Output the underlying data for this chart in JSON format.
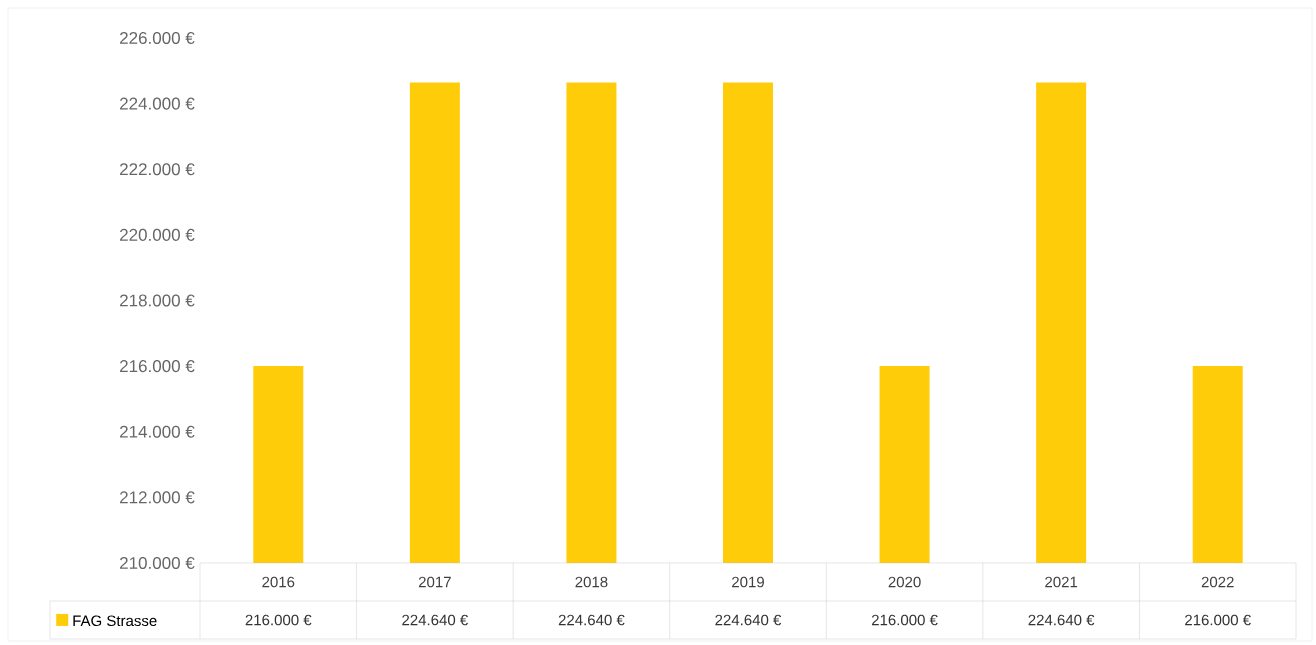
{
  "chart_data": {
    "type": "bar",
    "categories": [
      "2016",
      "2017",
      "2018",
      "2019",
      "2020",
      "2021",
      "2022"
    ],
    "series": [
      {
        "name": "FAG Strasse",
        "color": "#ffcc09",
        "values": [
          216000,
          224640,
          224640,
          224640,
          216000,
          224640,
          216000
        ],
        "value_labels": [
          "216.000 €",
          "224.640 €",
          "224.640 €",
          "224.640 €",
          "216.000 €",
          "224.640 €",
          "216.000 €"
        ]
      }
    ],
    "ylim": [
      210000,
      226000
    ],
    "yticks": [
      {
        "value": 210000,
        "label": "210.000 €"
      },
      {
        "value": 212000,
        "label": "212.000 €"
      },
      {
        "value": 214000,
        "label": "214.000 €"
      },
      {
        "value": 216000,
        "label": "216.000 €"
      },
      {
        "value": 218000,
        "label": "218.000 €"
      },
      {
        "value": 220000,
        "label": "220.000 €"
      },
      {
        "value": 222000,
        "label": "222.000 €"
      },
      {
        "value": 224000,
        "label": "224.000 €"
      },
      {
        "value": 226000,
        "label": "226.000 €"
      }
    ],
    "legend": "bottom",
    "grid": false
  }
}
